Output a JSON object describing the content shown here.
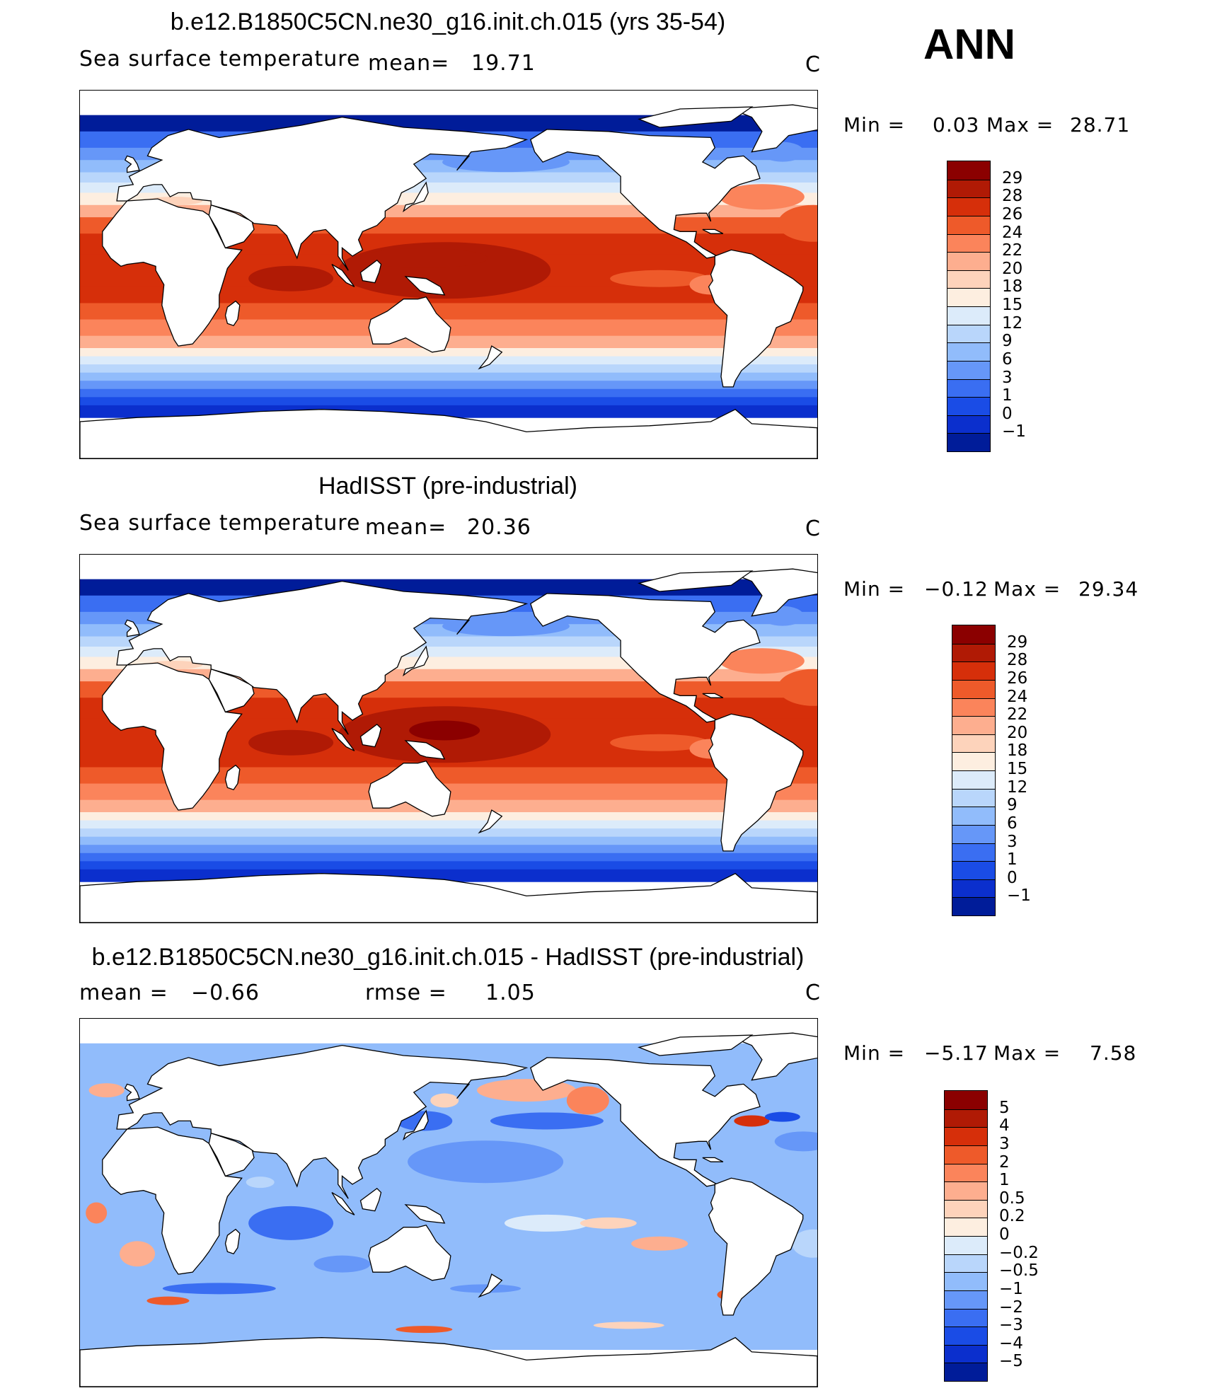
{
  "season": "ANN",
  "units": "C",
  "panels": [
    {
      "title": "b.e12.B1850C5CN.ne30_g16.init.ch.015 (yrs 35-54)",
      "variable": "Sea surface temperature",
      "stat1_label": "mean=",
      "stat1_value": "19.71",
      "units": "C",
      "min_label": "Min =",
      "min_value": "0.03",
      "max_label": "Max =",
      "max_value": "28.71",
      "colorbar": {
        "colors": [
          "#8b0000",
          "#b01a05",
          "#d62f0a",
          "#ee5a2a",
          "#fb845b",
          "#fdae8f",
          "#fdd3bb",
          "#fdeee0",
          "#dcebfa",
          "#b9d6fb",
          "#91bcfb",
          "#6697f8",
          "#3a6ef2",
          "#1a4ce6",
          "#0b2fcd",
          "#001c99"
        ],
        "labels": [
          "29",
          "28",
          "26",
          "24",
          "22",
          "20",
          "18",
          "15",
          "12",
          "9",
          "6",
          "3",
          "1",
          "0",
          "−1"
        ]
      },
      "field": "sst_model"
    },
    {
      "title": "HadISST (pre-industrial)",
      "variable": "Sea surface temperature",
      "stat1_label": "mean=",
      "stat1_value": "20.36",
      "units": "C",
      "min_label": "Min =",
      "min_value": "−0.12",
      "max_label": "Max =",
      "max_value": "29.34",
      "colorbar": {
        "colors": [
          "#8b0000",
          "#b01a05",
          "#d62f0a",
          "#ee5a2a",
          "#fb845b",
          "#fdae8f",
          "#fdd3bb",
          "#fdeee0",
          "#dcebfa",
          "#b9d6fb",
          "#91bcfb",
          "#6697f8",
          "#3a6ef2",
          "#1a4ce6",
          "#0b2fcd",
          "#001c99"
        ],
        "labels": [
          "29",
          "28",
          "26",
          "24",
          "22",
          "20",
          "18",
          "15",
          "12",
          "9",
          "6",
          "3",
          "1",
          "0",
          "−1"
        ]
      },
      "field": "sst_obs"
    },
    {
      "title": "b.e12.B1850C5CN.ne30_g16.init.ch.015 - HadISST (pre-industrial)",
      "stat1_label": "mean =",
      "stat1_value": "−0.66",
      "stat2_label": "rmse =",
      "stat2_value": "1.05",
      "units": "C",
      "min_label": "Min =",
      "min_value": "−5.17",
      "max_label": "Max =",
      "max_value": "7.58",
      "colorbar": {
        "colors": [
          "#8b0000",
          "#b01a05",
          "#d62f0a",
          "#ee5a2a",
          "#fb845b",
          "#fdae8f",
          "#fdd3bb",
          "#fdeee0",
          "#dcebfa",
          "#b9d6fb",
          "#91bcfb",
          "#6697f8",
          "#3a6ef2",
          "#1a4ce6",
          "#0b2fcd",
          "#001c99"
        ],
        "labels": [
          "5",
          "4",
          "3",
          "2",
          "1",
          "0.5",
          "0.2",
          "0",
          "−0.2",
          "−0.5",
          "−1",
          "−2",
          "−3",
          "−4",
          "−5"
        ]
      },
      "field": "sst_diff"
    }
  ]
}
